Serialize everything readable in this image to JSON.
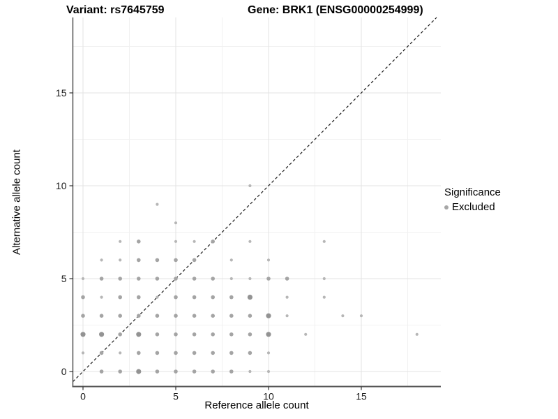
{
  "chart_data": {
    "type": "scatter",
    "titles": {
      "left": "Variant: rs7645759",
      "right": "Gene: BRK1 (ENSG00000254999)"
    },
    "xlabel": "Reference allele count",
    "ylabel": "Alternative allele count",
    "x_ticks": [
      "0",
      "5",
      "10",
      "15"
    ],
    "y_ticks": [
      "0",
      "5",
      "10",
      "15"
    ],
    "x_tick_values": [
      0,
      5,
      10,
      15
    ],
    "y_tick_values": [
      0,
      5,
      10,
      15
    ],
    "xlim": [
      -0.55,
      19.3
    ],
    "ylim": [
      -0.8,
      19.05
    ],
    "grid": {
      "major": [
        0,
        5,
        10,
        15
      ],
      "minor": [
        2.5,
        7.5,
        12.5,
        17.5
      ],
      "major_color": "#e3e3e3",
      "minor_color": "#f1f1f1"
    },
    "identity_line": {
      "equation": "y = x",
      "style": "dashed",
      "color": "#1a1a1a"
    },
    "legend": {
      "title": "Significance",
      "items": [
        {
          "label": "Excluded",
          "color": "#a6a6a6"
        }
      ]
    },
    "point_color_tiers": {
      "t1": "#b6b6b6",
      "t2": "#a4a4a4",
      "t3": "#939393"
    },
    "point_radius_tiers": {
      "t1": 2.1,
      "t2": 2.8,
      "t3": 3.6
    },
    "points": [
      [
        1,
        0,
        2
      ],
      [
        2,
        0,
        2
      ],
      [
        3,
        0,
        3
      ],
      [
        4,
        0,
        2
      ],
      [
        5,
        0,
        2
      ],
      [
        6,
        0,
        2
      ],
      [
        7,
        0,
        2
      ],
      [
        8,
        0,
        2
      ],
      [
        9,
        0,
        1
      ],
      [
        10,
        0,
        1
      ],
      [
        0,
        1,
        1
      ],
      [
        1,
        1,
        2
      ],
      [
        2,
        1,
        1
      ],
      [
        3,
        1,
        2
      ],
      [
        4,
        1,
        2
      ],
      [
        5,
        1,
        2
      ],
      [
        6,
        1,
        2
      ],
      [
        7,
        1,
        2
      ],
      [
        8,
        1,
        2
      ],
      [
        9,
        1,
        2
      ],
      [
        10,
        1,
        1
      ],
      [
        0,
        2,
        3
      ],
      [
        1,
        2,
        3
      ],
      [
        2,
        2,
        2
      ],
      [
        3,
        2,
        3
      ],
      [
        4,
        2,
        2
      ],
      [
        5,
        2,
        2
      ],
      [
        6,
        2,
        2
      ],
      [
        7,
        2,
        2
      ],
      [
        8,
        2,
        2
      ],
      [
        9,
        2,
        2
      ],
      [
        10,
        2,
        3
      ],
      [
        12,
        2,
        1
      ],
      [
        18,
        2,
        1
      ],
      [
        0,
        3,
        2
      ],
      [
        1,
        3,
        2
      ],
      [
        2,
        3,
        2
      ],
      [
        3,
        3,
        2
      ],
      [
        4,
        3,
        2
      ],
      [
        5,
        3,
        2
      ],
      [
        6,
        3,
        2
      ],
      [
        7,
        3,
        2
      ],
      [
        8,
        3,
        2
      ],
      [
        9,
        3,
        2
      ],
      [
        10,
        3,
        3
      ],
      [
        11,
        3,
        1
      ],
      [
        14,
        3,
        1
      ],
      [
        15,
        3,
        1
      ],
      [
        0,
        4,
        2
      ],
      [
        1,
        4,
        1
      ],
      [
        2,
        4,
        2
      ],
      [
        3,
        4,
        2
      ],
      [
        4,
        4,
        1
      ],
      [
        5,
        4,
        2
      ],
      [
        6,
        4,
        2
      ],
      [
        7,
        4,
        2
      ],
      [
        8,
        4,
        2
      ],
      [
        9,
        4,
        3
      ],
      [
        11,
        4,
        1
      ],
      [
        13,
        4,
        1
      ],
      [
        0,
        5,
        1
      ],
      [
        1,
        5,
        2
      ],
      [
        2,
        5,
        2
      ],
      [
        3,
        5,
        2
      ],
      [
        4,
        5,
        2
      ],
      [
        5,
        5,
        2
      ],
      [
        6,
        5,
        2
      ],
      [
        7,
        5,
        2
      ],
      [
        8,
        5,
        1
      ],
      [
        9,
        5,
        1
      ],
      [
        10,
        5,
        2
      ],
      [
        11,
        5,
        2
      ],
      [
        13,
        5,
        1
      ],
      [
        1,
        6,
        1
      ],
      [
        2,
        6,
        1
      ],
      [
        3,
        6,
        2
      ],
      [
        4,
        6,
        2
      ],
      [
        5,
        6,
        2
      ],
      [
        6,
        6,
        2
      ],
      [
        8,
        6,
        1
      ],
      [
        10,
        6,
        1
      ],
      [
        2,
        7,
        1
      ],
      [
        3,
        7,
        2
      ],
      [
        5,
        7,
        1
      ],
      [
        6,
        7,
        1
      ],
      [
        7,
        7,
        2
      ],
      [
        9,
        7,
        1
      ],
      [
        13,
        7,
        1
      ],
      [
        5,
        8,
        1
      ],
      [
        4,
        9,
        1
      ],
      [
        9,
        10,
        1
      ]
    ]
  }
}
